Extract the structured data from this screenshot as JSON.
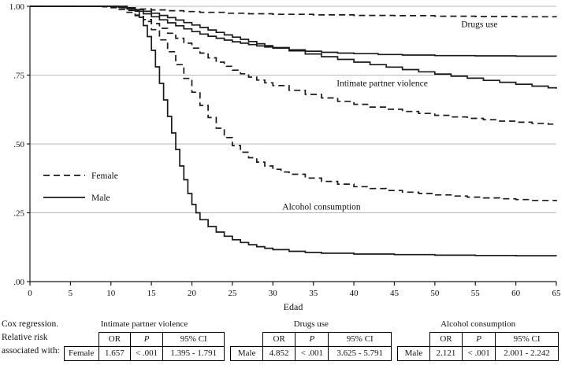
{
  "accent_colors": {
    "line": "#1a1a1a",
    "gridline": "#b8b8b8",
    "background": "#ffffff"
  },
  "chart_data": {
    "type": "line",
    "subtype": "kaplan-meier-step",
    "title": "",
    "xlabel": "Edad",
    "ylabel": "",
    "xlim": [
      0,
      65
    ],
    "ylim": [
      0,
      1
    ],
    "grid": "horizontal",
    "xticks": [
      0,
      5,
      10,
      15,
      20,
      25,
      30,
      35,
      40,
      45,
      50,
      55,
      60,
      65
    ],
    "yticks": [
      {
        "v": 0.0,
        "label": ".00"
      },
      {
        "v": 0.25,
        "label": ".25"
      },
      {
        "v": 0.5,
        "label": ".50"
      },
      {
        "v": 0.75,
        "label": ".75"
      },
      {
        "v": 1.0,
        "label": "1.00"
      }
    ],
    "legend": [
      {
        "label": "Female",
        "style": "dashed"
      },
      {
        "label": "Male",
        "style": "solid"
      }
    ],
    "annotations": [
      {
        "text": "Drugs use",
        "x": 55.5,
        "y": 0.925
      },
      {
        "text": "Intimate partner violence",
        "x": 43.5,
        "y": 0.71
      },
      {
        "text": "Alcohol consumption",
        "x": 36.0,
        "y": 0.262
      }
    ],
    "series": [
      {
        "name": "Drugs use (Female)",
        "outcome": "Drugs use",
        "sex": "Female",
        "style": "dashed",
        "points": [
          [
            0,
            1
          ],
          [
            7,
            1
          ],
          [
            9,
            0.998
          ],
          [
            11,
            0.995
          ],
          [
            13,
            0.99
          ],
          [
            15,
            0.987
          ],
          [
            17,
            0.984
          ],
          [
            19,
            0.981
          ],
          [
            21,
            0.978
          ],
          [
            24,
            0.975
          ],
          [
            27,
            0.973
          ],
          [
            30,
            0.971
          ],
          [
            35,
            0.969
          ],
          [
            40,
            0.967
          ],
          [
            45,
            0.966
          ],
          [
            50,
            0.964
          ],
          [
            55,
            0.963
          ],
          [
            60,
            0.962
          ],
          [
            65,
            0.961
          ]
        ]
      },
      {
        "name": "Drugs use (Male)",
        "outcome": "Drugs use",
        "sex": "Male",
        "style": "solid",
        "points": [
          [
            0,
            1
          ],
          [
            9,
            1
          ],
          [
            10,
            0.998
          ],
          [
            11,
            0.995
          ],
          [
            12,
            0.99
          ],
          [
            13,
            0.982
          ],
          [
            14,
            0.973
          ],
          [
            15,
            0.962
          ],
          [
            16,
            0.951
          ],
          [
            17,
            0.94
          ],
          [
            18,
            0.929
          ],
          [
            19,
            0.918
          ],
          [
            20,
            0.908
          ],
          [
            21,
            0.899
          ],
          [
            22,
            0.891
          ],
          [
            23,
            0.884
          ],
          [
            24,
            0.877
          ],
          [
            25,
            0.871
          ],
          [
            26,
            0.866
          ],
          [
            27,
            0.861
          ],
          [
            28,
            0.856
          ],
          [
            29,
            0.852
          ],
          [
            30,
            0.848
          ],
          [
            32,
            0.842
          ],
          [
            34,
            0.837
          ],
          [
            36,
            0.833
          ],
          [
            38,
            0.83
          ],
          [
            40,
            0.828
          ],
          [
            43,
            0.825
          ],
          [
            46,
            0.823
          ],
          [
            50,
            0.821
          ],
          [
            55,
            0.82
          ],
          [
            60,
            0.819
          ],
          [
            65,
            0.818
          ]
        ]
      },
      {
        "name": "Intimate partner violence (Male)",
        "outcome": "Intimate partner violence",
        "sex": "Male",
        "style": "solid",
        "points": [
          [
            0,
            1
          ],
          [
            10,
            1
          ],
          [
            11,
            0.997
          ],
          [
            12,
            0.993
          ],
          [
            13,
            0.988
          ],
          [
            14,
            0.982
          ],
          [
            15,
            0.975
          ],
          [
            16,
            0.967
          ],
          [
            17,
            0.959
          ],
          [
            18,
            0.95
          ],
          [
            19,
            0.941
          ],
          [
            20,
            0.932
          ],
          [
            21,
            0.923
          ],
          [
            22,
            0.914
          ],
          [
            23,
            0.905
          ],
          [
            24,
            0.896
          ],
          [
            25,
            0.888
          ],
          [
            26,
            0.88
          ],
          [
            27,
            0.872
          ],
          [
            28,
            0.864
          ],
          [
            29,
            0.857
          ],
          [
            30,
            0.85
          ],
          [
            32,
            0.838
          ],
          [
            34,
            0.827
          ],
          [
            36,
            0.817
          ],
          [
            38,
            0.807
          ],
          [
            40,
            0.797
          ],
          [
            42,
            0.788
          ],
          [
            44,
            0.779
          ],
          [
            46,
            0.77
          ],
          [
            48,
            0.762
          ],
          [
            50,
            0.754
          ],
          [
            52,
            0.746
          ],
          [
            54,
            0.739
          ],
          [
            56,
            0.731
          ],
          [
            58,
            0.724
          ],
          [
            60,
            0.717
          ],
          [
            62,
            0.71
          ],
          [
            64,
            0.704
          ],
          [
            65,
            0.701
          ]
        ]
      },
      {
        "name": "Intimate partner violence (Female)",
        "outcome": "Intimate partner violence",
        "sex": "Female",
        "style": "dashed",
        "points": [
          [
            0,
            1
          ],
          [
            9,
            1
          ],
          [
            10,
            0.995
          ],
          [
            11,
            0.988
          ],
          [
            12,
            0.978
          ],
          [
            13,
            0.966
          ],
          [
            14,
            0.952
          ],
          [
            15,
            0.937
          ],
          [
            16,
            0.92
          ],
          [
            17,
            0.902
          ],
          [
            18,
            0.884
          ],
          [
            19,
            0.866
          ],
          [
            20,
            0.848
          ],
          [
            21,
            0.83
          ],
          [
            22,
            0.813
          ],
          [
            23,
            0.797
          ],
          [
            24,
            0.782
          ],
          [
            25,
            0.768
          ],
          [
            26,
            0.755
          ],
          [
            27,
            0.743
          ],
          [
            28,
            0.732
          ],
          [
            29,
            0.722
          ],
          [
            30,
            0.712
          ],
          [
            32,
            0.695
          ],
          [
            34,
            0.68
          ],
          [
            36,
            0.667
          ],
          [
            38,
            0.655
          ],
          [
            40,
            0.644
          ],
          [
            42,
            0.634
          ],
          [
            44,
            0.626
          ],
          [
            46,
            0.618
          ],
          [
            48,
            0.611
          ],
          [
            50,
            0.604
          ],
          [
            52,
            0.598
          ],
          [
            54,
            0.593
          ],
          [
            56,
            0.588
          ],
          [
            58,
            0.583
          ],
          [
            60,
            0.579
          ],
          [
            62,
            0.575
          ],
          [
            64,
            0.572
          ],
          [
            65,
            0.57
          ]
        ]
      },
      {
        "name": "Alcohol consumption (Female)",
        "outcome": "Alcohol consumption",
        "sex": "Female",
        "style": "dashed",
        "points": [
          [
            0,
            1
          ],
          [
            10,
            1
          ],
          [
            11,
            0.995
          ],
          [
            12,
            0.985
          ],
          [
            13,
            0.968
          ],
          [
            14,
            0.945
          ],
          [
            15,
            0.915
          ],
          [
            16,
            0.878
          ],
          [
            17,
            0.835
          ],
          [
            18,
            0.788
          ],
          [
            19,
            0.738
          ],
          [
            20,
            0.688
          ],
          [
            21,
            0.64
          ],
          [
            22,
            0.596
          ],
          [
            23,
            0.557
          ],
          [
            24,
            0.523
          ],
          [
            25,
            0.494
          ],
          [
            26,
            0.47
          ],
          [
            27,
            0.45
          ],
          [
            28,
            0.434
          ],
          [
            29,
            0.42
          ],
          [
            30,
            0.408
          ],
          [
            31,
            0.398
          ],
          [
            32,
            0.39
          ],
          [
            34,
            0.376
          ],
          [
            36,
            0.364
          ],
          [
            38,
            0.354
          ],
          [
            40,
            0.345
          ],
          [
            42,
            0.338
          ],
          [
            44,
            0.331
          ],
          [
            46,
            0.325
          ],
          [
            48,
            0.32
          ],
          [
            50,
            0.315
          ],
          [
            52,
            0.311
          ],
          [
            54,
            0.307
          ],
          [
            56,
            0.304
          ],
          [
            58,
            0.301
          ],
          [
            60,
            0.298
          ],
          [
            62,
            0.295
          ],
          [
            65,
            0.292
          ]
        ]
      },
      {
        "name": "Alcohol consumption (Male)",
        "outcome": "Alcohol consumption",
        "sex": "Male",
        "style": "solid",
        "points": [
          [
            0,
            1
          ],
          [
            11,
            1
          ],
          [
            12,
            0.995
          ],
          [
            13,
            0.985
          ],
          [
            13.5,
            0.96
          ],
          [
            14,
            0.93
          ],
          [
            14.5,
            0.89
          ],
          [
            15,
            0.84
          ],
          [
            15.5,
            0.78
          ],
          [
            16,
            0.72
          ],
          [
            16.5,
            0.66
          ],
          [
            17,
            0.6
          ],
          [
            17.5,
            0.54
          ],
          [
            18,
            0.48
          ],
          [
            18.5,
            0.42
          ],
          [
            19,
            0.37
          ],
          [
            19.5,
            0.32
          ],
          [
            20,
            0.28
          ],
          [
            20.5,
            0.25
          ],
          [
            21,
            0.225
          ],
          [
            22,
            0.2
          ],
          [
            23,
            0.18
          ],
          [
            24,
            0.165
          ],
          [
            25,
            0.152
          ],
          [
            26,
            0.142
          ],
          [
            27,
            0.134
          ],
          [
            28,
            0.127
          ],
          [
            29,
            0.121
          ],
          [
            30,
            0.116
          ],
          [
            32,
            0.11
          ],
          [
            34,
            0.106
          ],
          [
            36,
            0.103
          ],
          [
            40,
            0.1
          ],
          [
            45,
            0.098
          ],
          [
            50,
            0.096
          ],
          [
            55,
            0.095
          ],
          [
            60,
            0.094
          ],
          [
            65,
            0.093
          ]
        ]
      }
    ]
  },
  "table": {
    "caption_lines": [
      "Cox regression.",
      "Relative risk",
      "associated with:"
    ],
    "col_headers": [
      "OR",
      "P",
      "95% CI"
    ],
    "groups": [
      {
        "title": "Intimate partner violence",
        "row_label": "Female",
        "or": "1.657",
        "p": "< .001",
        "ci": "1.395 - 1.791"
      },
      {
        "title": "Drugs use",
        "row_label": "Male",
        "or": "4.852",
        "p": "< .001",
        "ci": "3.625 - 5.791"
      },
      {
        "title": "Alcohol consumption",
        "row_label": "Male",
        "or": "2.121",
        "p": "< .001",
        "ci": "2.001 - 2.242"
      }
    ]
  }
}
